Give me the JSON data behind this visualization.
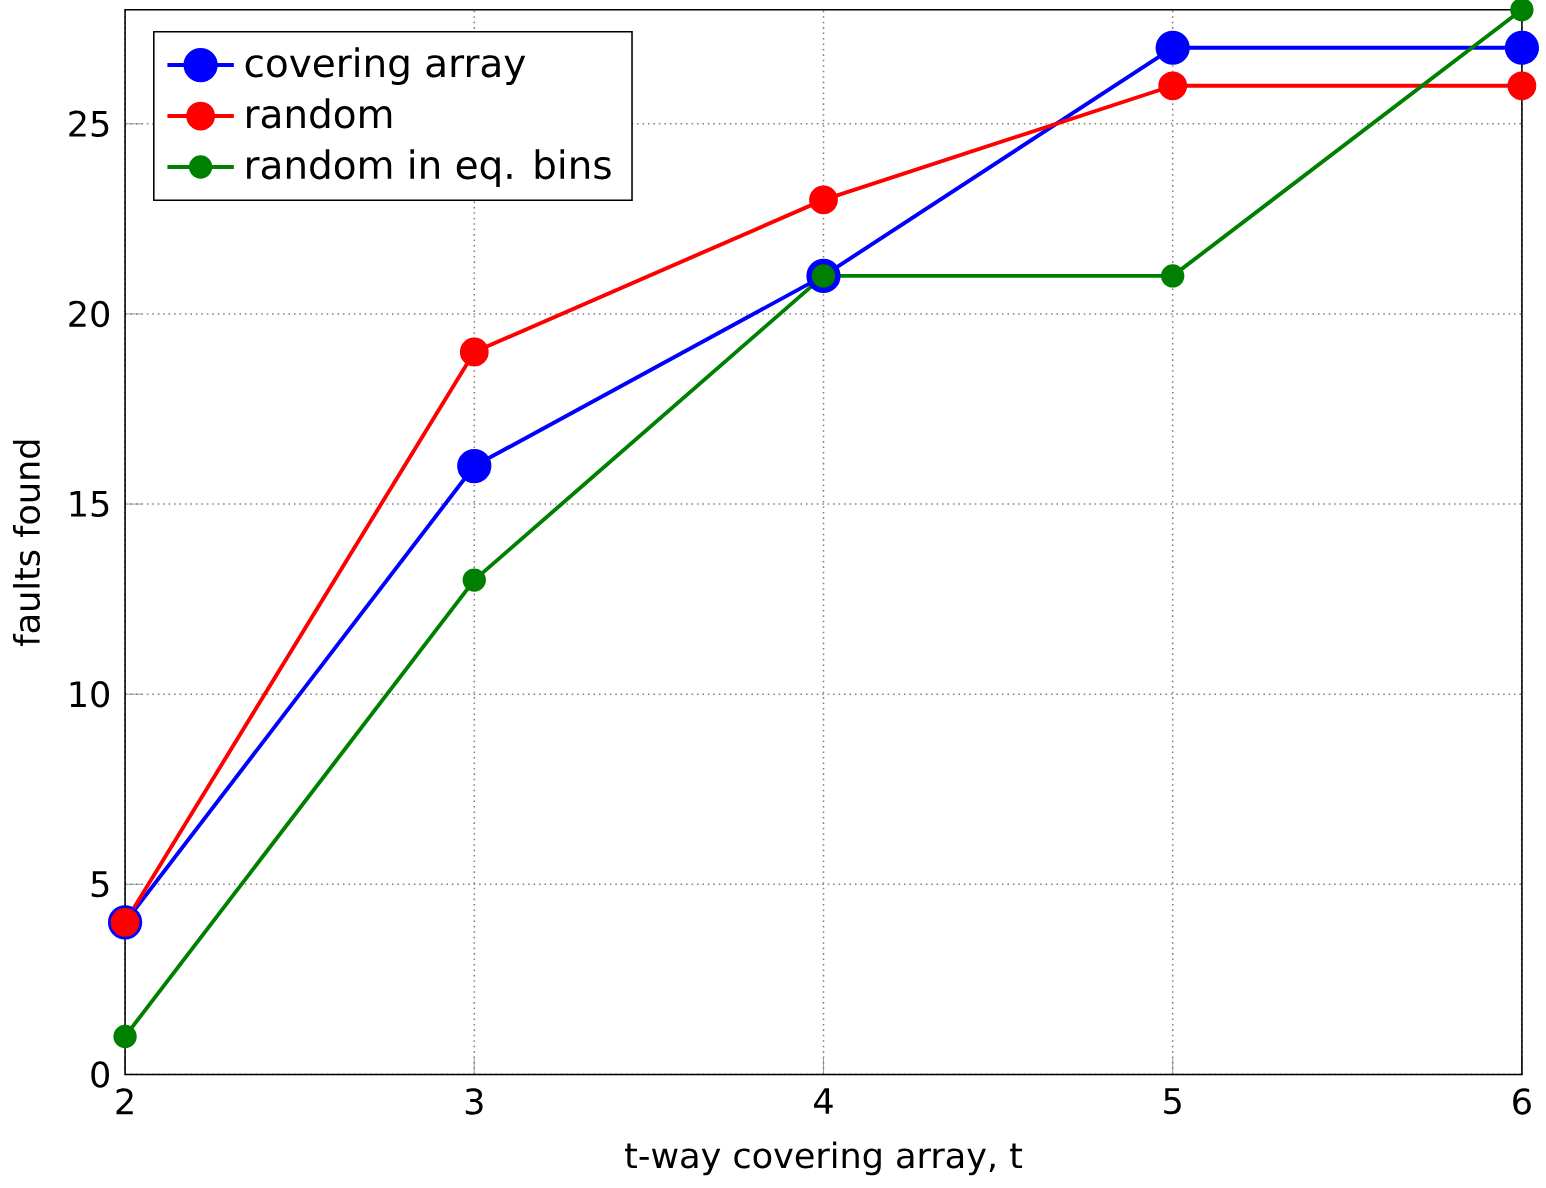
{
  "chart_data": {
    "type": "line",
    "xlabel": "t-way covering array, t",
    "ylabel": "faults found",
    "x": [
      2,
      3,
      4,
      5,
      6
    ],
    "series": [
      {
        "name": "covering array",
        "color": "#0000ff",
        "values": [
          4,
          16,
          21,
          27,
          27
        ]
      },
      {
        "name": "random",
        "color": "#ff0000",
        "values": [
          4,
          19,
          23,
          26,
          26
        ]
      },
      {
        "name": "random in eq. bins",
        "color": "#008000",
        "values": [
          1,
          13,
          21,
          21,
          28
        ]
      }
    ],
    "xlim": [
      2,
      6
    ],
    "ylim": [
      0,
      28
    ],
    "xticks": [
      2,
      3,
      4,
      5,
      6
    ],
    "yticks": [
      0,
      5,
      10,
      15,
      20,
      25
    ],
    "grid": true,
    "legend": "top left",
    "marker": "circle",
    "line_style": "solid"
  }
}
